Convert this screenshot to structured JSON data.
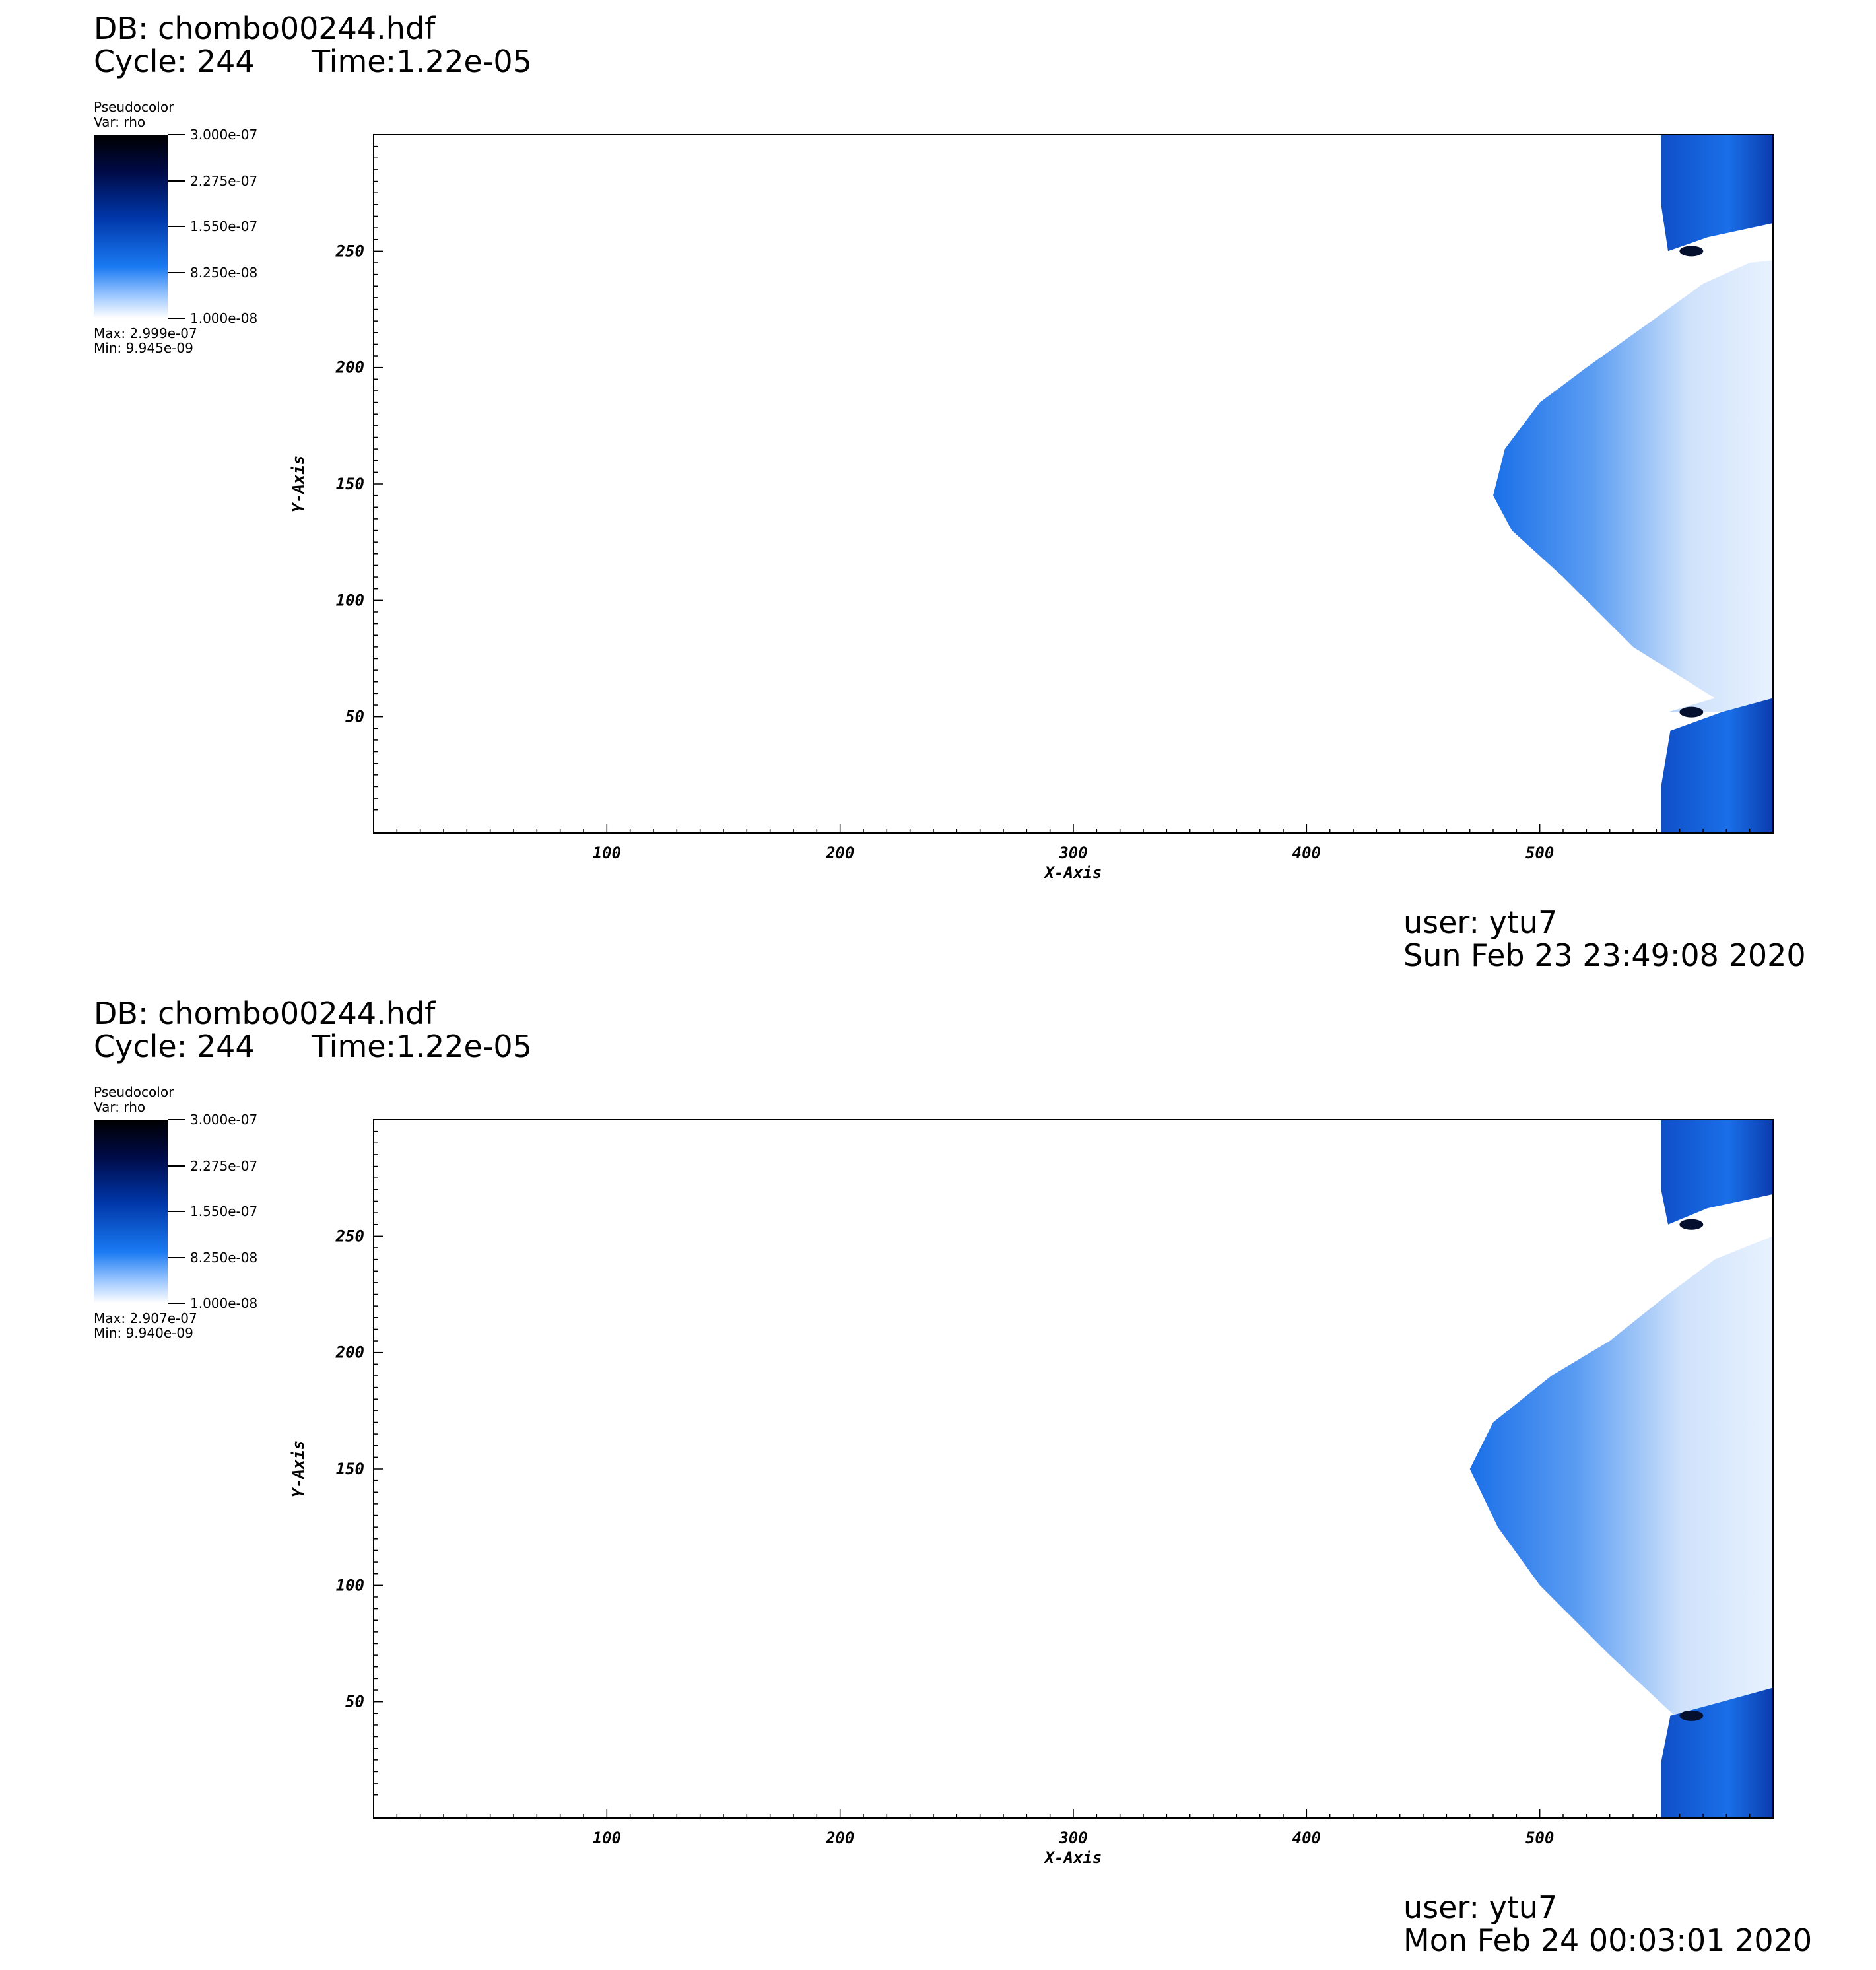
{
  "panels": [
    {
      "db": "DB: chombo00244.hdf",
      "cycle": "Cycle: 244",
      "time": "Time:1.22e-05",
      "legend": {
        "title": "Pseudocolor",
        "var": "Var: rho",
        "ticks": [
          "3.000e-07",
          "2.275e-07",
          "1.550e-07",
          "8.250e-08",
          "1.000e-08"
        ],
        "tick_values": [
          3e-07,
          2.275e-07,
          1.55e-07,
          8.25e-08,
          1e-08
        ],
        "max": "Max:  2.999e-07",
        "min": "Min:  9.945e-09"
      },
      "user": "user: ytu7",
      "date": "Sun Feb 23 23:49:08 2020"
    },
    {
      "db": "DB: chombo00244.hdf",
      "cycle": "Cycle: 244",
      "time": "Time:1.22e-05",
      "legend": {
        "title": "Pseudocolor",
        "var": "Var: rho",
        "ticks": [
          "3.000e-07",
          "2.275e-07",
          "1.550e-07",
          "8.250e-08",
          "1.000e-08"
        ],
        "tick_values": [
          3e-07,
          2.275e-07,
          1.55e-07,
          8.25e-08,
          1e-08
        ],
        "max": "Max:  2.907e-07",
        "min": "Min:  9.940e-09"
      },
      "user": "user: ytu7",
      "date": "Mon Feb 24 00:03:01 2020"
    }
  ],
  "chart_data": [
    {
      "type": "heatmap",
      "xlabel": "X-Axis",
      "ylabel": "Y-Axis",
      "xlim": [
        0,
        600
      ],
      "ylim": [
        0,
        300
      ],
      "xticks": [
        "100",
        "200",
        "300",
        "400",
        "500"
      ],
      "xtick_values": [
        100,
        200,
        300,
        400,
        500
      ],
      "yticks": [
        "50",
        "100",
        "150",
        "200",
        "250"
      ],
      "ytick_values": [
        50,
        100,
        150,
        200,
        250
      ],
      "colormap": [
        "#000000",
        "#000a46",
        "#0036a8",
        "#1a7af2",
        "#ffffff"
      ],
      "value_range": [
        1e-08,
        3e-07
      ],
      "field_boundary": {
        "description_units": "data",
        "points": [
          [
            552,
            0
          ],
          [
            552,
            20
          ],
          [
            556,
            44
          ],
          [
            578,
            52
          ],
          [
            600,
            58
          ],
          [
            600,
            0
          ]
        ],
        "main_front": [
          [
            555,
            52
          ],
          [
            575,
            58
          ],
          [
            540,
            80
          ],
          [
            510,
            110
          ],
          [
            488,
            130
          ],
          [
            480,
            145
          ],
          [
            485,
            165
          ],
          [
            500,
            185
          ],
          [
            520,
            200
          ],
          [
            548,
            220
          ],
          [
            570,
            236
          ],
          [
            590,
            245
          ],
          [
            600,
            246
          ]
        ],
        "top_lobe": [
          [
            555,
            250
          ],
          [
            572,
            256
          ],
          [
            600,
            262
          ],
          [
            600,
            300
          ],
          [
            552,
            300
          ],
          [
            552,
            270
          ]
        ]
      }
    },
    {
      "type": "heatmap",
      "xlabel": "X-Axis",
      "ylabel": "Y-Axis",
      "xlim": [
        0,
        600
      ],
      "ylim": [
        0,
        300
      ],
      "xticks": [
        "100",
        "200",
        "300",
        "400",
        "500"
      ],
      "xtick_values": [
        100,
        200,
        300,
        400,
        500
      ],
      "yticks": [
        "50",
        "100",
        "150",
        "200",
        "250"
      ],
      "ytick_values": [
        50,
        100,
        150,
        200,
        250
      ],
      "colormap": [
        "#000000",
        "#000a46",
        "#0036a8",
        "#1a7af2",
        "#ffffff"
      ],
      "value_range": [
        1e-08,
        3e-07
      ],
      "field_boundary": {
        "description_units": "data",
        "points": [
          [
            552,
            0
          ],
          [
            552,
            24
          ],
          [
            556,
            44
          ],
          [
            578,
            50
          ],
          [
            600,
            56
          ],
          [
            600,
            0
          ]
        ],
        "main_front": [
          [
            555,
            44
          ],
          [
            560,
            42
          ],
          [
            530,
            70
          ],
          [
            500,
            100
          ],
          [
            482,
            125
          ],
          [
            470,
            150
          ],
          [
            480,
            170
          ],
          [
            505,
            190
          ],
          [
            530,
            205
          ],
          [
            555,
            225
          ],
          [
            575,
            240
          ],
          [
            600,
            250
          ]
        ],
        "top_lobe": [
          [
            555,
            255
          ],
          [
            572,
            262
          ],
          [
            600,
            268
          ],
          [
            600,
            300
          ],
          [
            552,
            300
          ],
          [
            552,
            270
          ]
        ]
      }
    }
  ]
}
